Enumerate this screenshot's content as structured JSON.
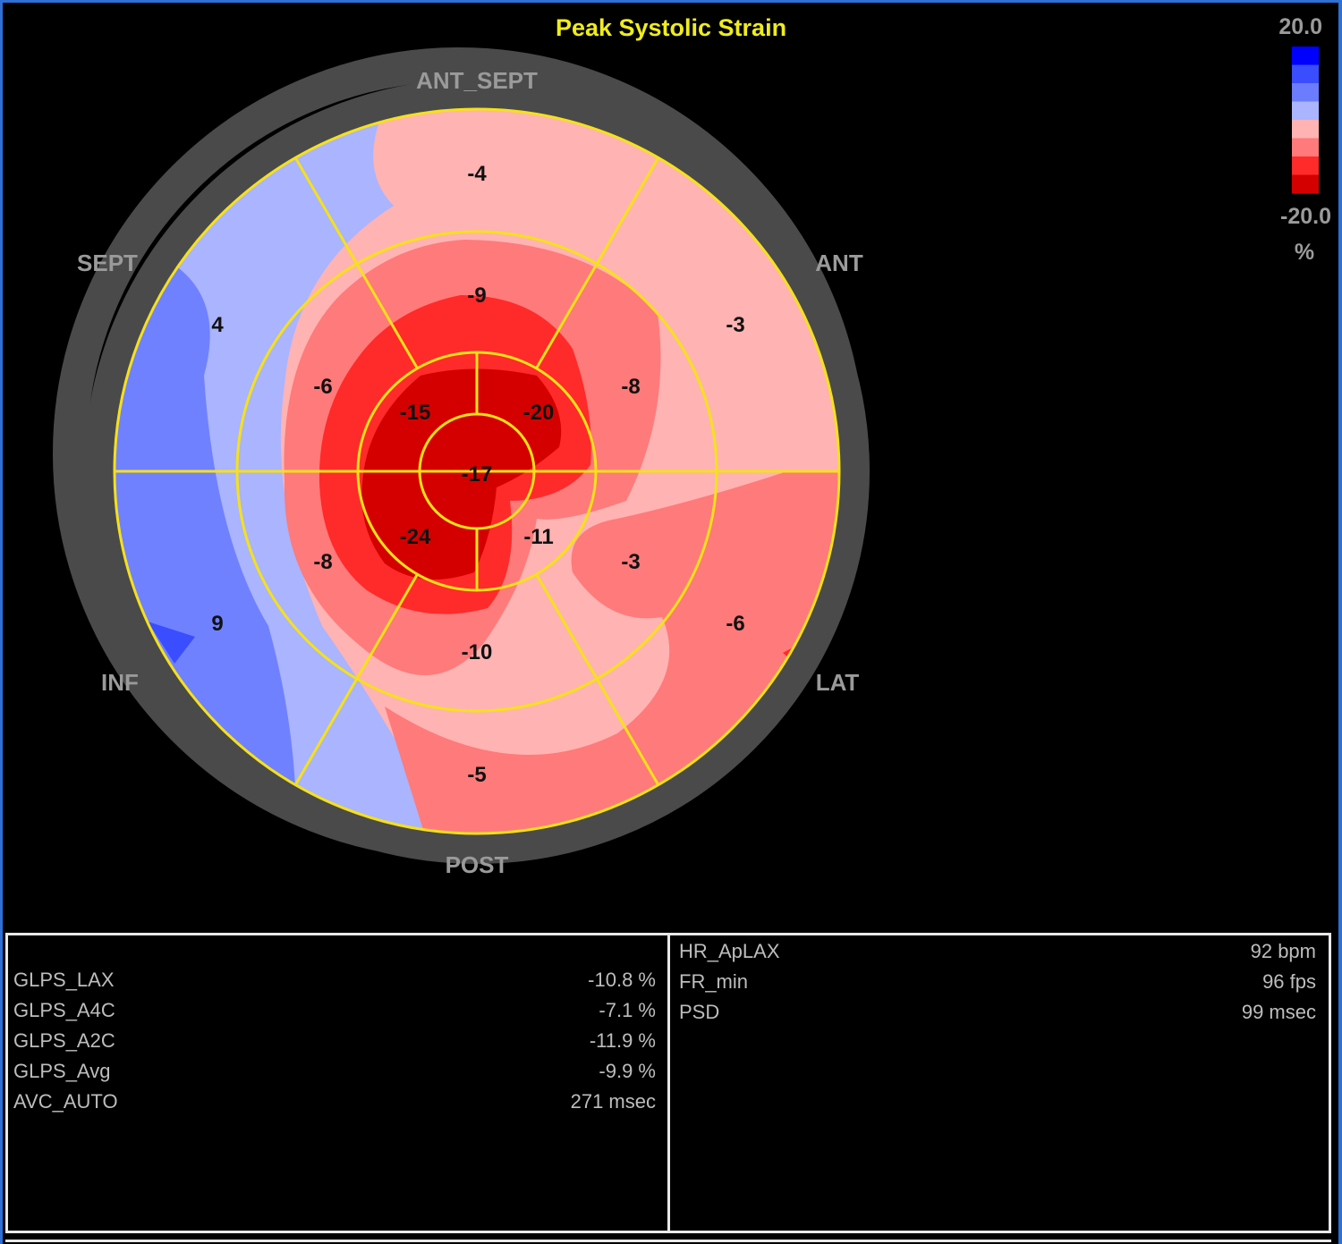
{
  "chart_data": {
    "type": "heatmap",
    "subtype": "bullseye",
    "title": "Peak Systolic Strain",
    "scale": {
      "max_label": "20.0",
      "min_label": "-20.0",
      "unit": "%",
      "max": 20,
      "min": -20
    },
    "wall_labels": [
      "ANT_SEPT",
      "SEPT",
      "ANT",
      "INF",
      "LAT",
      "POST"
    ],
    "segments": {
      "basal": [
        {
          "wall": "ANT_SEPT",
          "value": -4
        },
        {
          "wall": "ANT",
          "value": -3
        },
        {
          "wall": "LAT",
          "value": -6
        },
        {
          "wall": "POST",
          "value": -5
        },
        {
          "wall": "INF",
          "value": 9
        },
        {
          "wall": "SEPT",
          "value": 4
        }
      ],
      "mid": [
        {
          "wall": "ANT_SEPT",
          "value": -9
        },
        {
          "wall": "ANT",
          "value": -8
        },
        {
          "wall": "LAT",
          "value": -3
        },
        {
          "wall": "POST",
          "value": -10
        },
        {
          "wall": "INF",
          "value": -8
        },
        {
          "wall": "SEPT",
          "value": -6
        }
      ],
      "apical": [
        {
          "wall": "ANT",
          "value": -20
        },
        {
          "wall": "LAT",
          "value": -11
        },
        {
          "wall": "INF",
          "value": -24
        },
        {
          "wall": "SEPT",
          "value": -15
        }
      ],
      "apex": -17
    },
    "colors": {
      "scale": [
        "#0000ff",
        "#3a4dff",
        "#6b7cff",
        "#aab4ff",
        "#ffb3b3",
        "#ff7a7a",
        "#ff2a2a",
        "#d40000"
      ],
      "segment_line": "#f5e11a",
      "ring": "#4a4a4a",
      "title": "#f0ec1c"
    }
  },
  "left_panel": {
    "rows": [
      {
        "label": "GLPS_LAX",
        "value": "-10.8 %"
      },
      {
        "label": "GLPS_A4C",
        "value": "-7.1 %"
      },
      {
        "label": "GLPS_A2C",
        "value": "-11.9 %"
      },
      {
        "label": "GLPS_Avg",
        "value": "-9.9 %"
      },
      {
        "label": "AVC_AUTO",
        "value": "271 msec"
      }
    ]
  },
  "right_panel": {
    "rows": [
      {
        "label": "HR_ApLAX",
        "value": "92 bpm"
      },
      {
        "label": "FR_min",
        "value": "96 fps"
      },
      {
        "label": "PSD",
        "value": "99 msec"
      }
    ]
  }
}
